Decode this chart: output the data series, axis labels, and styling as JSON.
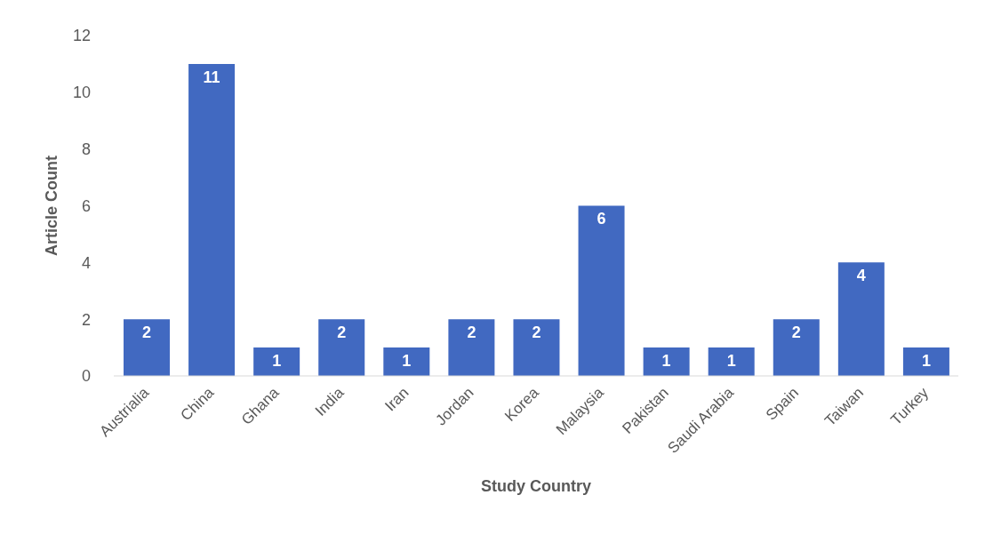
{
  "chart_data": {
    "type": "bar",
    "xlabel": "Study Country",
    "ylabel": "Article Count",
    "categories": [
      "Austrialia",
      "China",
      "Ghana",
      "India",
      "Iran",
      "Jordan",
      "Korea",
      "Malaysia",
      "Pakistan",
      "Saudi Arabia",
      "Spain",
      "Taiwan",
      "Turkey"
    ],
    "values": [
      2,
      11,
      1,
      2,
      1,
      2,
      2,
      6,
      1,
      1,
      2,
      4,
      1
    ],
    "color": "#4169c1",
    "ylim": [
      0,
      12
    ],
    "yticks": [
      0,
      2,
      4,
      6,
      8,
      10,
      12
    ],
    "grid": false,
    "data_labels": true
  }
}
